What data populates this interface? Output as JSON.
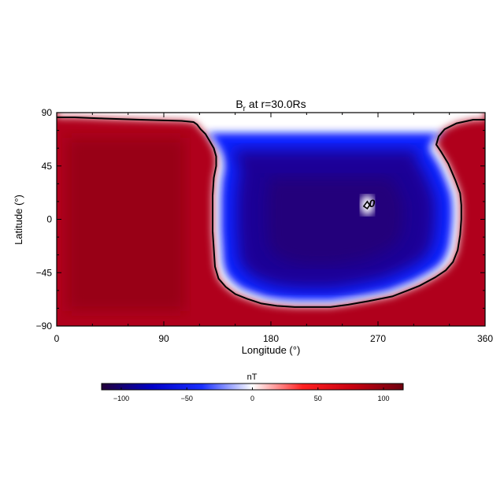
{
  "chart_data": {
    "type": "heatmap",
    "title": "B",
    "title_sub": "r",
    "title_suffix": " at r=30.0Rs",
    "xlabel": "Longitude (°)",
    "ylabel": "Latitude (°)",
    "xlim": [
      0,
      360
    ],
    "ylim": [
      -90,
      90
    ],
    "x_ticks": [
      0,
      90,
      180,
      270,
      360
    ],
    "y_ticks": [
      90,
      45,
      0,
      -45,
      -90
    ],
    "x_tick_labels": [
      "0",
      "90",
      "180",
      "270",
      "360"
    ],
    "y_tick_labels": [
      "90",
      "45",
      "0",
      "−45",
      "−90"
    ],
    "colorbar": {
      "label": "nT",
      "range": [
        -115,
        115
      ],
      "ticks": [
        -100,
        -50,
        0,
        50,
        100
      ],
      "tick_labels": [
        "−100",
        "−50",
        "0",
        "50",
        "100"
      ],
      "colors": [
        "#23003a",
        "#0000c8",
        "#1a30ff",
        "#ffffff",
        "#ff2020",
        "#c80010",
        "#6e0010"
      ]
    },
    "contour_label": "0",
    "contour_label_position": [
      261,
      13
    ],
    "zero_contour_outer": [
      [
        0,
        86
      ],
      [
        15,
        86
      ],
      [
        40,
        85
      ],
      [
        70,
        84
      ],
      [
        105,
        83
      ],
      [
        115,
        82
      ],
      [
        118,
        80
      ],
      [
        121,
        76
      ],
      [
        125,
        72
      ],
      [
        128,
        67
      ],
      [
        132,
        60
      ],
      [
        134,
        53
      ],
      [
        134,
        45
      ],
      [
        132,
        35
      ],
      [
        131,
        20
      ],
      [
        131,
        5
      ],
      [
        131,
        -10
      ],
      [
        132,
        -25
      ],
      [
        133,
        -40
      ],
      [
        136,
        -50
      ],
      [
        142,
        -57
      ],
      [
        150,
        -63
      ],
      [
        160,
        -67
      ],
      [
        172,
        -71
      ],
      [
        185,
        -73
      ],
      [
        200,
        -74
      ],
      [
        215,
        -74
      ],
      [
        230,
        -74
      ],
      [
        245,
        -72
      ],
      [
        262,
        -69
      ],
      [
        282,
        -65
      ],
      [
        295,
        -60
      ],
      [
        305,
        -56
      ],
      [
        318,
        -49
      ],
      [
        327,
        -43
      ],
      [
        333,
        -36
      ],
      [
        337,
        -26
      ],
      [
        339,
        -13
      ],
      [
        340,
        0
      ],
      [
        340,
        12
      ],
      [
        339,
        22
      ],
      [
        335,
        33
      ],
      [
        329,
        47
      ],
      [
        323,
        57
      ],
      [
        319,
        63
      ],
      [
        321,
        70
      ],
      [
        326,
        76
      ],
      [
        336,
        81
      ],
      [
        350,
        84
      ],
      [
        360,
        84
      ]
    ],
    "zero_contour_island": [
      [
        258,
        11
      ],
      [
        261,
        15
      ],
      [
        263,
        12
      ],
      [
        261,
        9
      ]
    ]
  }
}
